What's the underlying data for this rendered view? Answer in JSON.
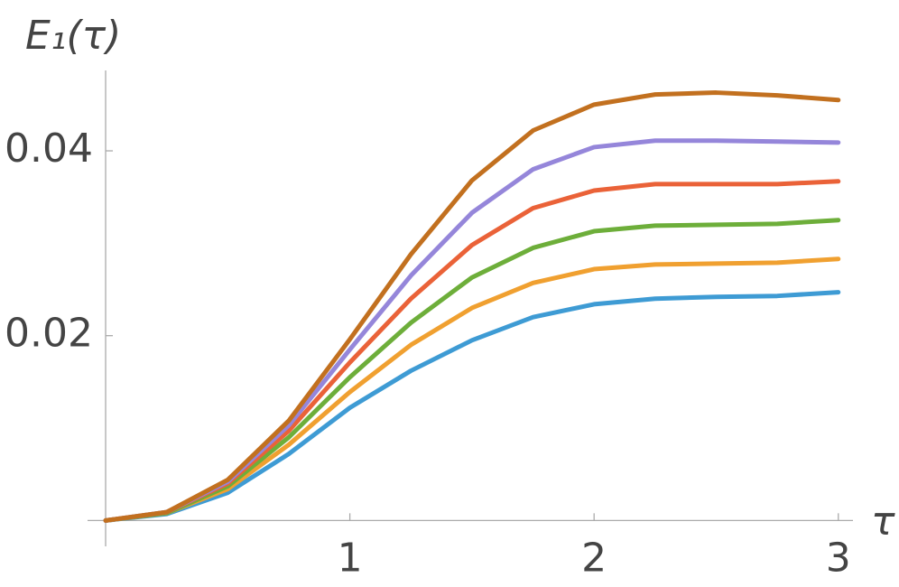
{
  "chart_data": {
    "type": "line",
    "y_label": "E₁(τ)",
    "x_label": "τ",
    "x": [
      0,
      0.25,
      0.5,
      0.75,
      1,
      1.25,
      1.5,
      1.75,
      2,
      2.25,
      2.5,
      2.75,
      3
    ],
    "series": [
      {
        "color": "#3e9bd4",
        "values": [
          0,
          0.0007,
          0.003,
          0.0072,
          0.0122,
          0.0162,
          0.0195,
          0.022,
          0.0234,
          0.024,
          0.0242,
          0.0243,
          0.0247
        ]
      },
      {
        "color": "#f0a030",
        "values": [
          0,
          0.0008,
          0.0034,
          0.0082,
          0.0139,
          0.019,
          0.023,
          0.0257,
          0.0272,
          0.0277,
          0.0278,
          0.0279,
          0.0283
        ]
      },
      {
        "color": "#6dae3a",
        "values": [
          0,
          0.0008,
          0.0037,
          0.009,
          0.0155,
          0.0214,
          0.0263,
          0.0295,
          0.0313,
          0.0319,
          0.032,
          0.0321,
          0.0325
        ]
      },
      {
        "color": "#ea6238",
        "values": [
          0,
          0.0009,
          0.004,
          0.0097,
          0.0171,
          0.024,
          0.0298,
          0.0338,
          0.0357,
          0.0364,
          0.0364,
          0.0364,
          0.0367
        ]
      },
      {
        "color": "#9586da",
        "values": [
          0,
          0.0009,
          0.0042,
          0.0103,
          0.0185,
          0.0265,
          0.0333,
          0.038,
          0.0404,
          0.0411,
          0.0411,
          0.041,
          0.0409
        ]
      },
      {
        "color": "#c2701f",
        "values": [
          0,
          0.0009,
          0.0044,
          0.0108,
          0.0196,
          0.0288,
          0.0368,
          0.0422,
          0.045,
          0.0461,
          0.0463,
          0.046,
          0.0455
        ]
      }
    ],
    "xlim": [
      -0.074,
      3.06
    ],
    "ylim": [
      -0.0028,
      0.0487
    ],
    "xticks": [
      1,
      2,
      3
    ],
    "yticks": [
      0.02,
      0.04
    ]
  }
}
